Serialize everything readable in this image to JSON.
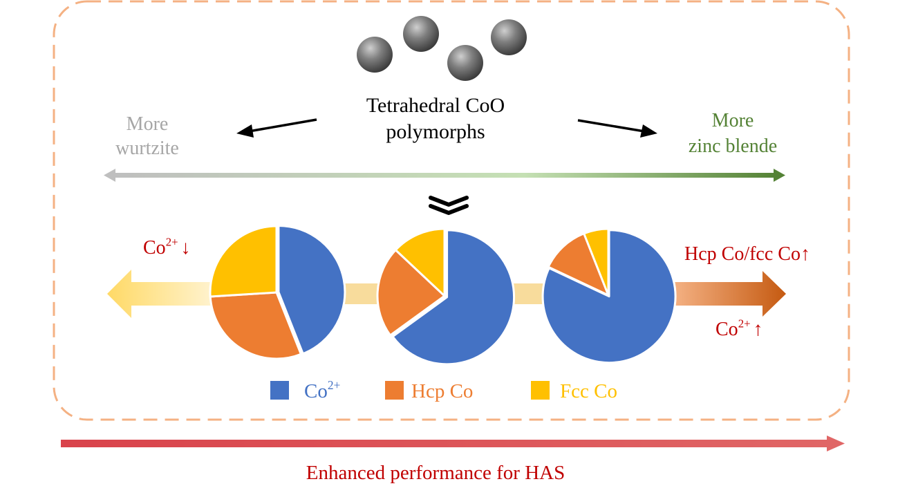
{
  "title": {
    "line1": "Tetrahedral CoO",
    "line2": "polymorphs"
  },
  "left_direction": {
    "line1": "More",
    "line2": "wurtzite"
  },
  "right_direction": {
    "line1": "More",
    "line2": "zinc blende"
  },
  "left_trend": {
    "species": "Co",
    "charge": "2+",
    "arrow": "↓"
  },
  "right_trend": {
    "ratio": "Hcp Co/fcc Co↑",
    "species": "Co",
    "charge": "2+",
    "arrow": "↑"
  },
  "bottom_caption": "Enhanced performance for HAS",
  "colors": {
    "co2": "#4472C4",
    "hcp": "#ED7D31",
    "fcc": "#FFC000",
    "wurtzite": "#a6a6a6",
    "zinc_blende": "#548235",
    "trend_red": "#c00000",
    "dashed_border": "#F4B183",
    "bottom_arrow": "#d94f4f"
  },
  "chart_data": {
    "type": "pie",
    "title": "",
    "legend": [
      {
        "name": "Co2+",
        "label": "Co",
        "sup": "2+",
        "color": "#4472C4"
      },
      {
        "name": "Hcp Co",
        "label": "Hcp Co",
        "sup": "",
        "color": "#ED7D31"
      },
      {
        "name": "Fcc Co",
        "label": "Fcc Co",
        "sup": "",
        "color": "#FFC000"
      }
    ],
    "pies": [
      {
        "name": "more-wurtzite",
        "slices": [
          {
            "series": "Co2+",
            "value": 44
          },
          {
            "series": "Hcp Co",
            "value": 30
          },
          {
            "series": "Fcc Co",
            "value": 26
          }
        ]
      },
      {
        "name": "intermediate",
        "slices": [
          {
            "series": "Co2+",
            "value": 65
          },
          {
            "series": "Hcp Co",
            "value": 22
          },
          {
            "series": "Fcc Co",
            "value": 13
          }
        ]
      },
      {
        "name": "more-zinc-blende",
        "slices": [
          {
            "series": "Co2+",
            "value": 82
          },
          {
            "series": "Hcp Co",
            "value": 12
          },
          {
            "series": "Fcc Co",
            "value": 6
          }
        ]
      }
    ]
  }
}
